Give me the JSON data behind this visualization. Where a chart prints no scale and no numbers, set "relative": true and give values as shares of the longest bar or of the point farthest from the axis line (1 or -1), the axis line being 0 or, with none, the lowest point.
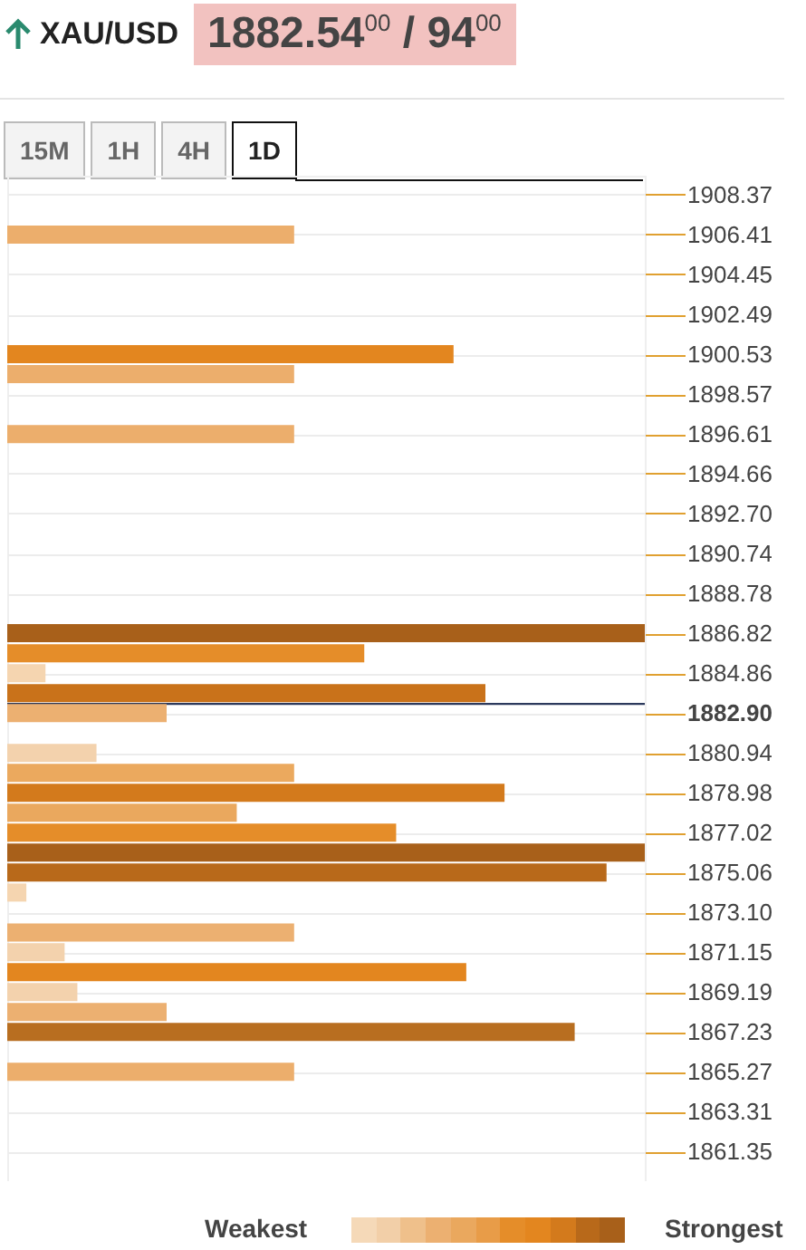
{
  "chart_data": {
    "type": "bar",
    "orientation": "horizontal",
    "relative": true,
    "title": "XAU/USD",
    "subtitle": "1882.54$^{00}$ / 94$^{00}$",
    "annotations": [
      "15M",
      "1H",
      "4H",
      "1D",
      "Weakest",
      "Strongest"
    ],
    "x": [
      1906.41,
      1900.53,
      1899.55,
      1896.61,
      1886.82,
      1885.84,
      1884.86,
      1883.88,
      1882.9,
      1880.94,
      1879.96,
      1878.98,
      1878.0,
      1877.02,
      1876.04,
      1875.06,
      1874.08,
      1872.12,
      1871.15,
      1870.17,
      1869.19,
      1868.21,
      1867.23,
      1865.27
    ],
    "values": [
      0.45,
      0.7,
      0.45,
      0.45,
      1.0,
      0.56,
      0.06,
      0.75,
      0.25,
      0.14,
      0.45,
      0.78,
      0.36,
      0.61,
      1.0,
      0.94,
      0.03,
      0.45,
      0.09,
      0.72,
      0.11,
      0.25,
      0.89,
      0.45
    ],
    "colors": [
      "#ecae6c",
      "#e3861f",
      "#ecae6c",
      "#ecae6c",
      "#a8601a",
      "#e58d29",
      "#f5d5b0",
      "#c9721a",
      "#ecb071",
      "#f3d2ad",
      "#eba95e",
      "#d37a1c",
      "#eaa85e",
      "#e58d29",
      "#a8601a",
      "#b8691a",
      "#f5d5b0",
      "#ecb071",
      "#f3d2ad",
      "#e3861f",
      "#f3d2ad",
      "#ecb071",
      "#b86e20",
      "#ecae6c"
    ],
    "ylim": [
      1859.9,
      1909.3
    ],
    "yticks": [
      1908.37,
      1906.41,
      1904.45,
      1902.49,
      1900.53,
      1898.57,
      1896.61,
      1894.66,
      {
        "value": 1892.7,
        "label": "1892.70"
      },
      1890.74,
      1888.78,
      1886.82,
      1884.86,
      {
        "value": 1882.9,
        "label": "1882.90"
      },
      1880.94,
      1878.98,
      1877.02,
      1875.06,
      {
        "value": 1873.1,
        "label": "1873.10"
      },
      1871.15,
      1869.19,
      1867.23,
      1865.27,
      1863.31,
      1861.35
    ],
    "grid": "y",
    "ref_lines": [
      {
        "axis": "y",
        "value": 1883.35,
        "color": "#2c3a5c"
      }
    ]
  }
}
